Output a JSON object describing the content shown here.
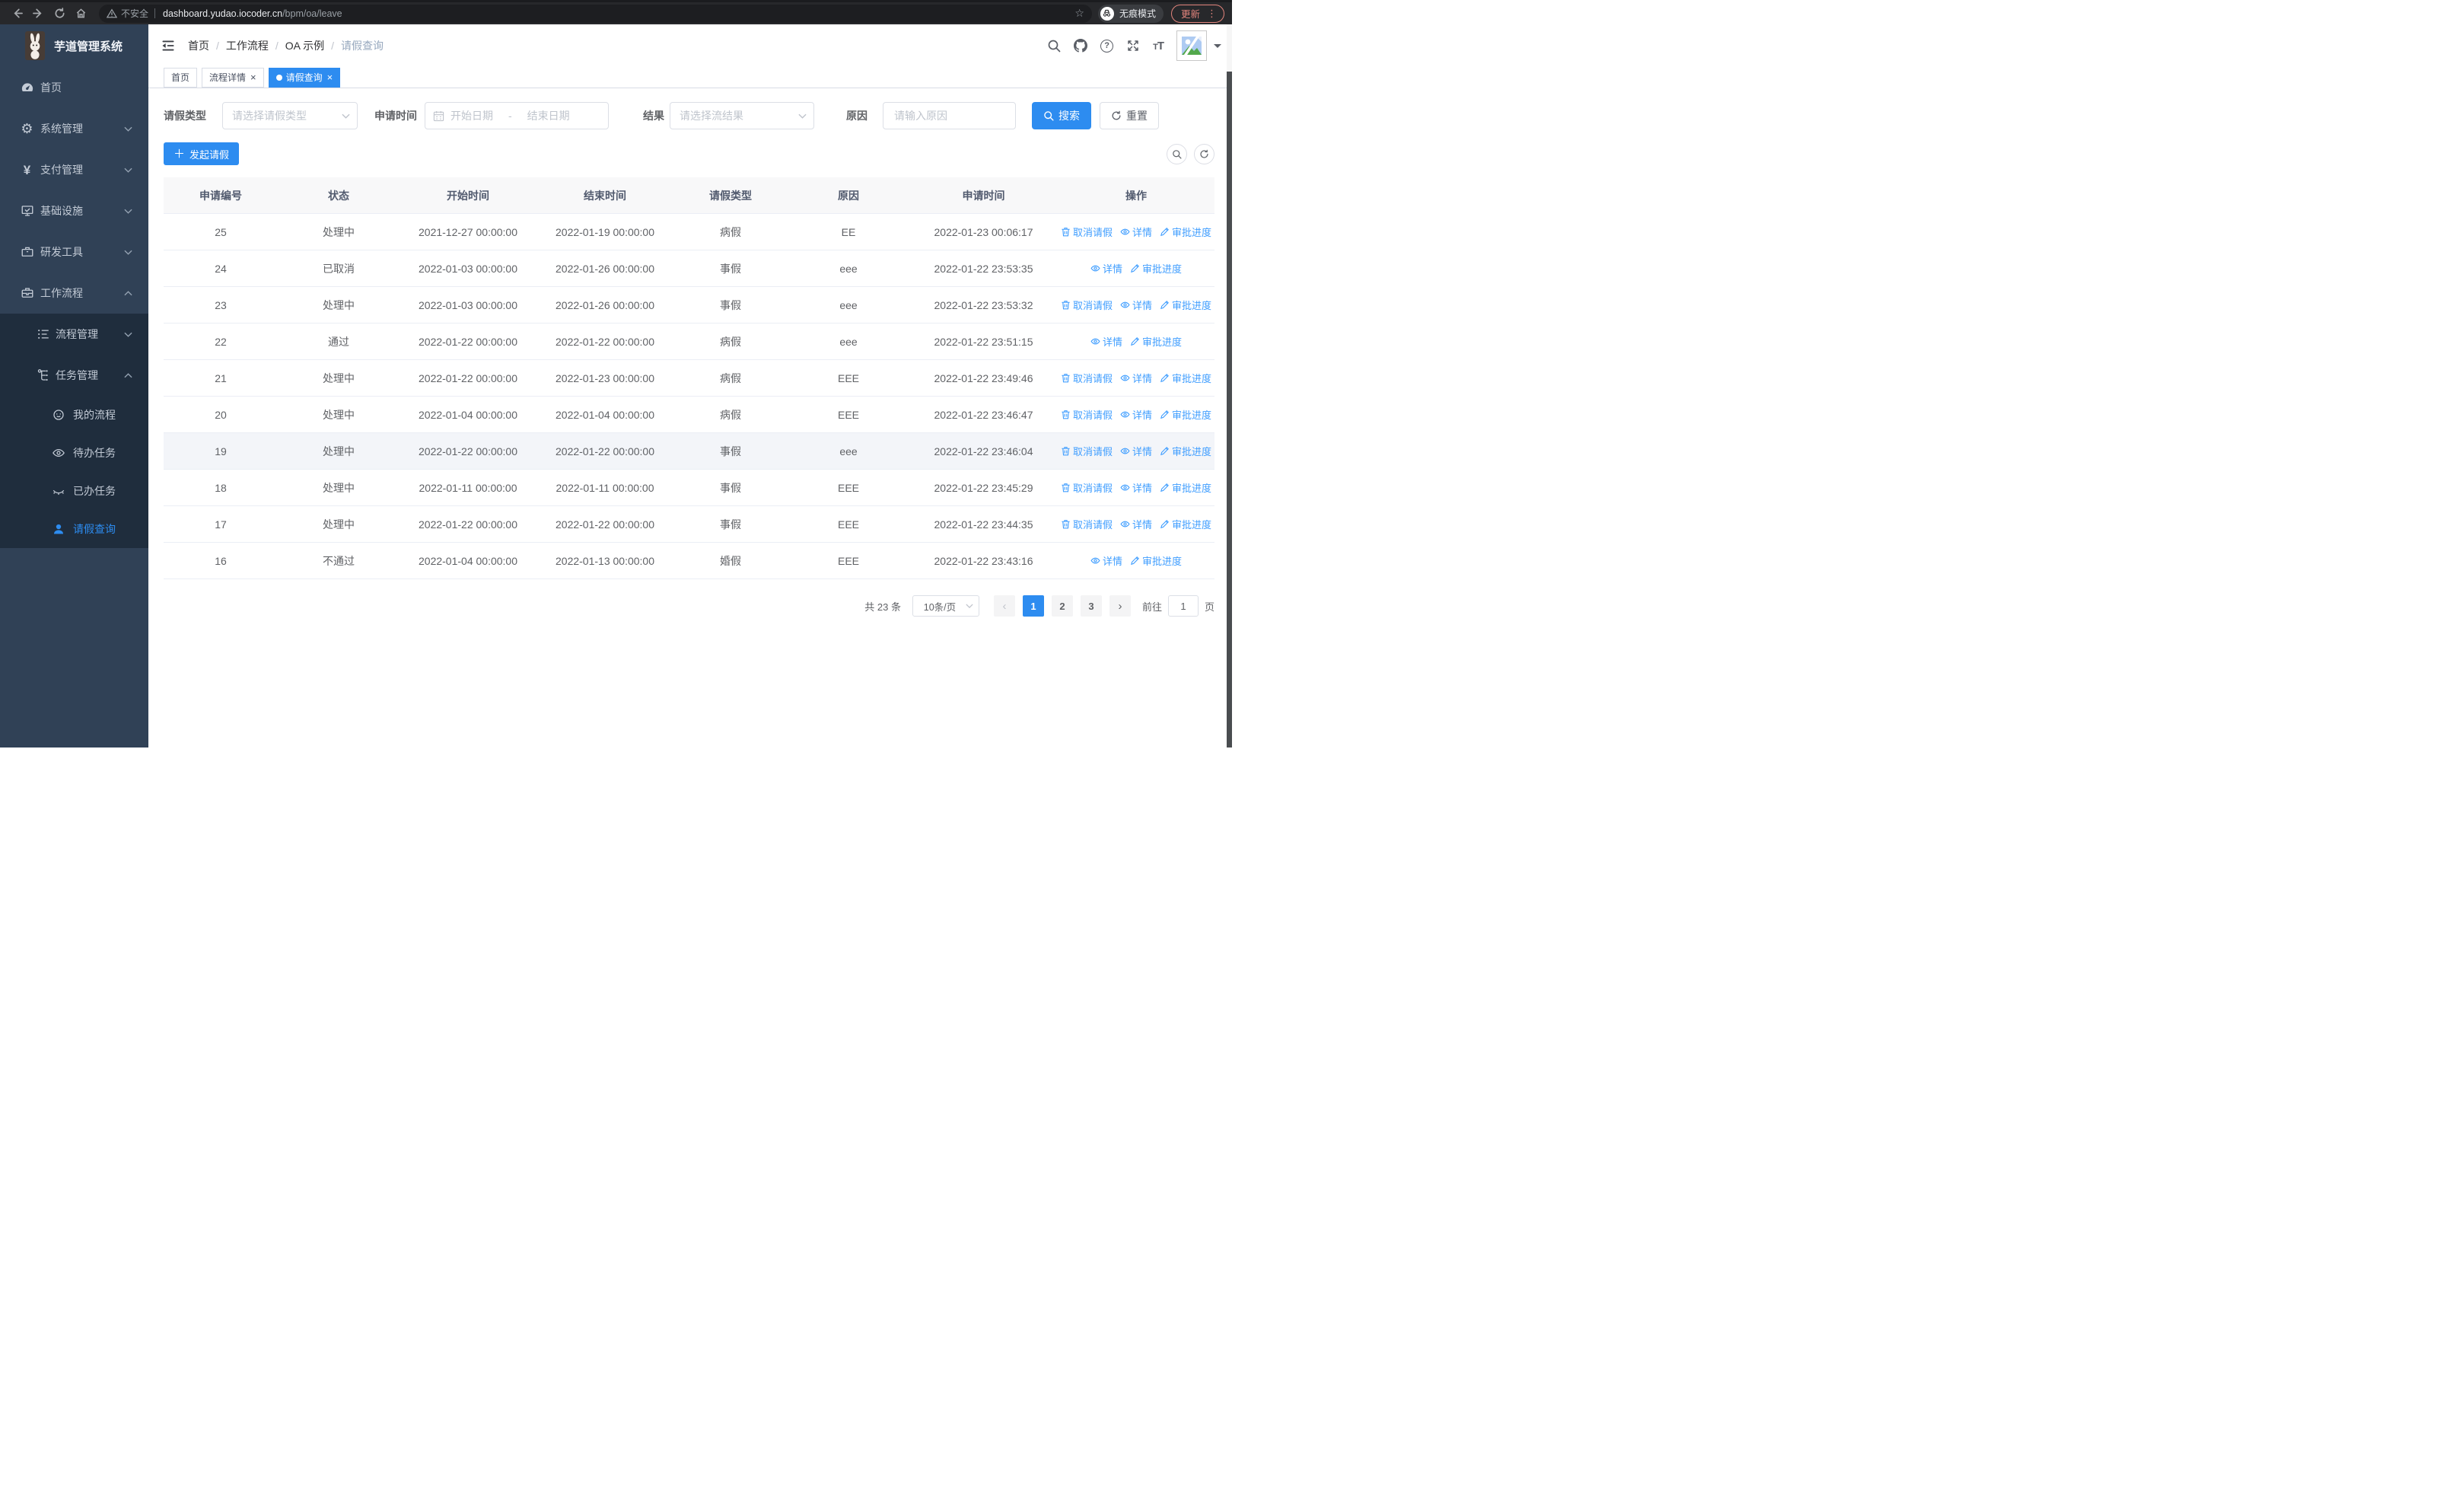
{
  "browser": {
    "security_label": "不安全",
    "url_host": "dashboard.yudao.iocoder.cn",
    "url_path": "/bpm/oa/leave",
    "incognito_label": "无痕模式",
    "update_label": "更新"
  },
  "logo": {
    "title": "芋道管理系统"
  },
  "breadcrumb": [
    "首页",
    "工作流程",
    "OA 示例",
    "请假查询"
  ],
  "tabs": [
    {
      "key": "home",
      "label": "首页",
      "closable": false,
      "active": false
    },
    {
      "key": "process-detail",
      "label": "流程详情",
      "closable": true,
      "active": false
    },
    {
      "key": "leave-query",
      "label": "请假查询",
      "closable": true,
      "active": true
    }
  ],
  "sidebar": {
    "items": [
      {
        "key": "home",
        "label": "首页",
        "icon": "dashboard",
        "chevron": null,
        "level": "top",
        "active": false
      },
      {
        "key": "system",
        "label": "系统管理",
        "icon": "gear",
        "chevron": "down",
        "level": "top",
        "active": false
      },
      {
        "key": "payment",
        "label": "支付管理",
        "icon": "yen",
        "chevron": "down",
        "level": "top",
        "active": false
      },
      {
        "key": "infrastructure",
        "label": "基础设施",
        "icon": "monitor",
        "chevron": "down",
        "level": "top",
        "active": false
      },
      {
        "key": "devtools",
        "label": "研发工具",
        "icon": "tools",
        "chevron": "down",
        "level": "top",
        "active": false
      },
      {
        "key": "workflow",
        "label": "工作流程",
        "icon": "briefcase",
        "chevron": "up",
        "level": "top",
        "active": false
      },
      {
        "key": "process-mgmt",
        "label": "流程管理",
        "icon": "list",
        "chevron": "down",
        "level": "sub",
        "active": false
      },
      {
        "key": "task-mgmt",
        "label": "任务管理",
        "icon": "tree",
        "chevron": "up",
        "level": "sub",
        "active": false
      },
      {
        "key": "my-process",
        "label": "我的流程",
        "icon": "face",
        "chevron": null,
        "level": "leaf",
        "active": false
      },
      {
        "key": "todo-tasks",
        "label": "待办任务",
        "icon": "eye",
        "chevron": null,
        "level": "leaf",
        "active": false
      },
      {
        "key": "done-tasks",
        "label": "已办任务",
        "icon": "eye-closed",
        "chevron": null,
        "level": "leaf",
        "active": false
      },
      {
        "key": "leave-query",
        "label": "请假查询",
        "icon": "user",
        "chevron": null,
        "level": "leaf",
        "active": true
      }
    ]
  },
  "filters": {
    "type_label": "请假类型",
    "type_placeholder": "请选择请假类型",
    "time_label": "申请时间",
    "start_placeholder": "开始日期",
    "range_separator": "-",
    "end_placeholder": "结束日期",
    "result_label": "结果",
    "result_placeholder": "请选择流结果",
    "reason_label": "原因",
    "reason_placeholder": "请输入原因",
    "search_label": "搜索",
    "reset_label": "重置"
  },
  "toolbar": {
    "create_label": "发起请假"
  },
  "table": {
    "columns": [
      "申请编号",
      "状态",
      "开始时间",
      "结束时间",
      "请假类型",
      "原因",
      "申请时间",
      "操作"
    ],
    "action_labels": {
      "cancel": "取消请假",
      "detail": "详情",
      "progress": "审批进度"
    },
    "rows": [
      {
        "id": "25",
        "status": "处理中",
        "start": "2021-12-27 00:00:00",
        "end": "2022-01-19 00:00:00",
        "type": "病假",
        "reason": "EE",
        "apply_time": "2022-01-23 00:06:17",
        "actions": [
          "cancel",
          "detail",
          "progress"
        ],
        "highlighted": false
      },
      {
        "id": "24",
        "status": "已取消",
        "start": "2022-01-03 00:00:00",
        "end": "2022-01-26 00:00:00",
        "type": "事假",
        "reason": "eee",
        "apply_time": "2022-01-22 23:53:35",
        "actions": [
          "detail",
          "progress"
        ],
        "highlighted": false
      },
      {
        "id": "23",
        "status": "处理中",
        "start": "2022-01-03 00:00:00",
        "end": "2022-01-26 00:00:00",
        "type": "事假",
        "reason": "eee",
        "apply_time": "2022-01-22 23:53:32",
        "actions": [
          "cancel",
          "detail",
          "progress"
        ],
        "highlighted": false
      },
      {
        "id": "22",
        "status": "通过",
        "start": "2022-01-22 00:00:00",
        "end": "2022-01-22 00:00:00",
        "type": "病假",
        "reason": "eee",
        "apply_time": "2022-01-22 23:51:15",
        "actions": [
          "detail",
          "progress"
        ],
        "highlighted": false
      },
      {
        "id": "21",
        "status": "处理中",
        "start": "2022-01-22 00:00:00",
        "end": "2022-01-23 00:00:00",
        "type": "病假",
        "reason": "EEE",
        "apply_time": "2022-01-22 23:49:46",
        "actions": [
          "cancel",
          "detail",
          "progress"
        ],
        "highlighted": false
      },
      {
        "id": "20",
        "status": "处理中",
        "start": "2022-01-04 00:00:00",
        "end": "2022-01-04 00:00:00",
        "type": "病假",
        "reason": "EEE",
        "apply_time": "2022-01-22 23:46:47",
        "actions": [
          "cancel",
          "detail",
          "progress"
        ],
        "highlighted": false
      },
      {
        "id": "19",
        "status": "处理中",
        "start": "2022-01-22 00:00:00",
        "end": "2022-01-22 00:00:00",
        "type": "事假",
        "reason": "eee",
        "apply_time": "2022-01-22 23:46:04",
        "actions": [
          "cancel",
          "detail",
          "progress"
        ],
        "highlighted": true
      },
      {
        "id": "18",
        "status": "处理中",
        "start": "2022-01-11 00:00:00",
        "end": "2022-01-11 00:00:00",
        "type": "事假",
        "reason": "EEE",
        "apply_time": "2022-01-22 23:45:29",
        "actions": [
          "cancel",
          "detail",
          "progress"
        ],
        "highlighted": false
      },
      {
        "id": "17",
        "status": "处理中",
        "start": "2022-01-22 00:00:00",
        "end": "2022-01-22 00:00:00",
        "type": "事假",
        "reason": "EEE",
        "apply_time": "2022-01-22 23:44:35",
        "actions": [
          "cancel",
          "detail",
          "progress"
        ],
        "highlighted": false
      },
      {
        "id": "16",
        "status": "不通过",
        "start": "2022-01-04 00:00:00",
        "end": "2022-01-13 00:00:00",
        "type": "婚假",
        "reason": "EEE",
        "apply_time": "2022-01-22 23:43:16",
        "actions": [
          "detail",
          "progress"
        ],
        "highlighted": false
      }
    ]
  },
  "pagination": {
    "total_label": "共 23 条",
    "page_size_label": "10条/页",
    "pages": [
      "1",
      "2",
      "3"
    ],
    "current_page": "1",
    "goto_label": "前往",
    "goto_value": "1",
    "unit_label": "页"
  },
  "colors": {
    "primary": "#2d8cf0",
    "link": "#409eff",
    "sidebar_bg": "#304156",
    "submenu_bg": "#1f2d3d",
    "update_accent": "#e2847c"
  }
}
